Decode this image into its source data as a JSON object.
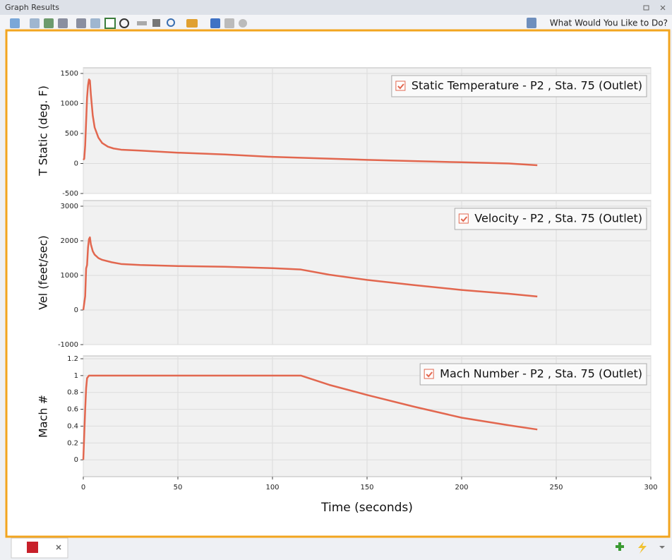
{
  "window": {
    "title": "Graph Results",
    "toolbar_action": "What Would You Like to Do?"
  },
  "chart_data": [
    {
      "type": "line",
      "y_label": "T Static (deg. F)",
      "x": [
        0,
        0.5,
        1,
        1.5,
        2,
        2.5,
        3,
        3.5,
        4,
        5,
        6,
        8,
        10,
        13,
        16,
        20,
        30,
        50,
        75,
        100,
        125,
        150,
        175,
        200,
        225,
        240
      ],
      "series": [
        {
          "name": "Static Temperature - P2 , Sta. 75 (Outlet)",
          "color": "#e2674f",
          "values": [
            60,
            80,
            300,
            700,
            1100,
            1300,
            1400,
            1380,
            1150,
            800,
            600,
            430,
            340,
            280,
            250,
            230,
            215,
            180,
            150,
            110,
            85,
            60,
            40,
            20,
            0,
            -30
          ]
        }
      ],
      "xlim": [
        0,
        300
      ],
      "ylim": [
        -500,
        1500
      ],
      "yticks": [
        -500,
        0,
        500,
        1000,
        1500
      ],
      "grid": true
    },
    {
      "type": "line",
      "y_label": "Vel (feet/sec)",
      "x": [
        0,
        1,
        1.5,
        2,
        2.5,
        3,
        3.5,
        4,
        5,
        6,
        8,
        10,
        15,
        20,
        30,
        50,
        75,
        100,
        115,
        130,
        150,
        175,
        200,
        225,
        240
      ],
      "series": [
        {
          "name": "Velocity - P2 , Sta. 75 (Outlet)",
          "color": "#e2674f",
          "values": [
            0,
            400,
            1200,
            1300,
            1800,
            2050,
            2100,
            1900,
            1700,
            1600,
            1500,
            1450,
            1380,
            1330,
            1300,
            1270,
            1250,
            1210,
            1170,
            1020,
            870,
            720,
            580,
            470,
            390
          ]
        }
      ],
      "xlim": [
        0,
        300
      ],
      "ylim": [
        -1000,
        3000
      ],
      "yticks": [
        -1000,
        0,
        1000,
        2000,
        3000
      ],
      "grid": true
    },
    {
      "type": "line",
      "y_label": "Mach #",
      "x_label": "Time (seconds)",
      "x": [
        0,
        0.5,
        1,
        1.5,
        2,
        3,
        50,
        100,
        115,
        130,
        150,
        175,
        200,
        225,
        240
      ],
      "series": [
        {
          "name": "Mach Number - P2 , Sta. 75 (Outlet)",
          "color": "#e2674f",
          "values": [
            0,
            0.3,
            0.6,
            0.85,
            0.97,
            1,
            1,
            1,
            1,
            0.89,
            0.77,
            0.63,
            0.5,
            0.41,
            0.36
          ]
        }
      ],
      "xlim": [
        0,
        300
      ],
      "xticks": [
        0,
        50,
        100,
        150,
        200,
        250,
        300
      ],
      "ylim": [
        -0.2,
        1.2
      ],
      "yticks": [
        0,
        0.2,
        0.4,
        0.6,
        0.8,
        1,
        1.2
      ],
      "grid": true
    }
  ]
}
